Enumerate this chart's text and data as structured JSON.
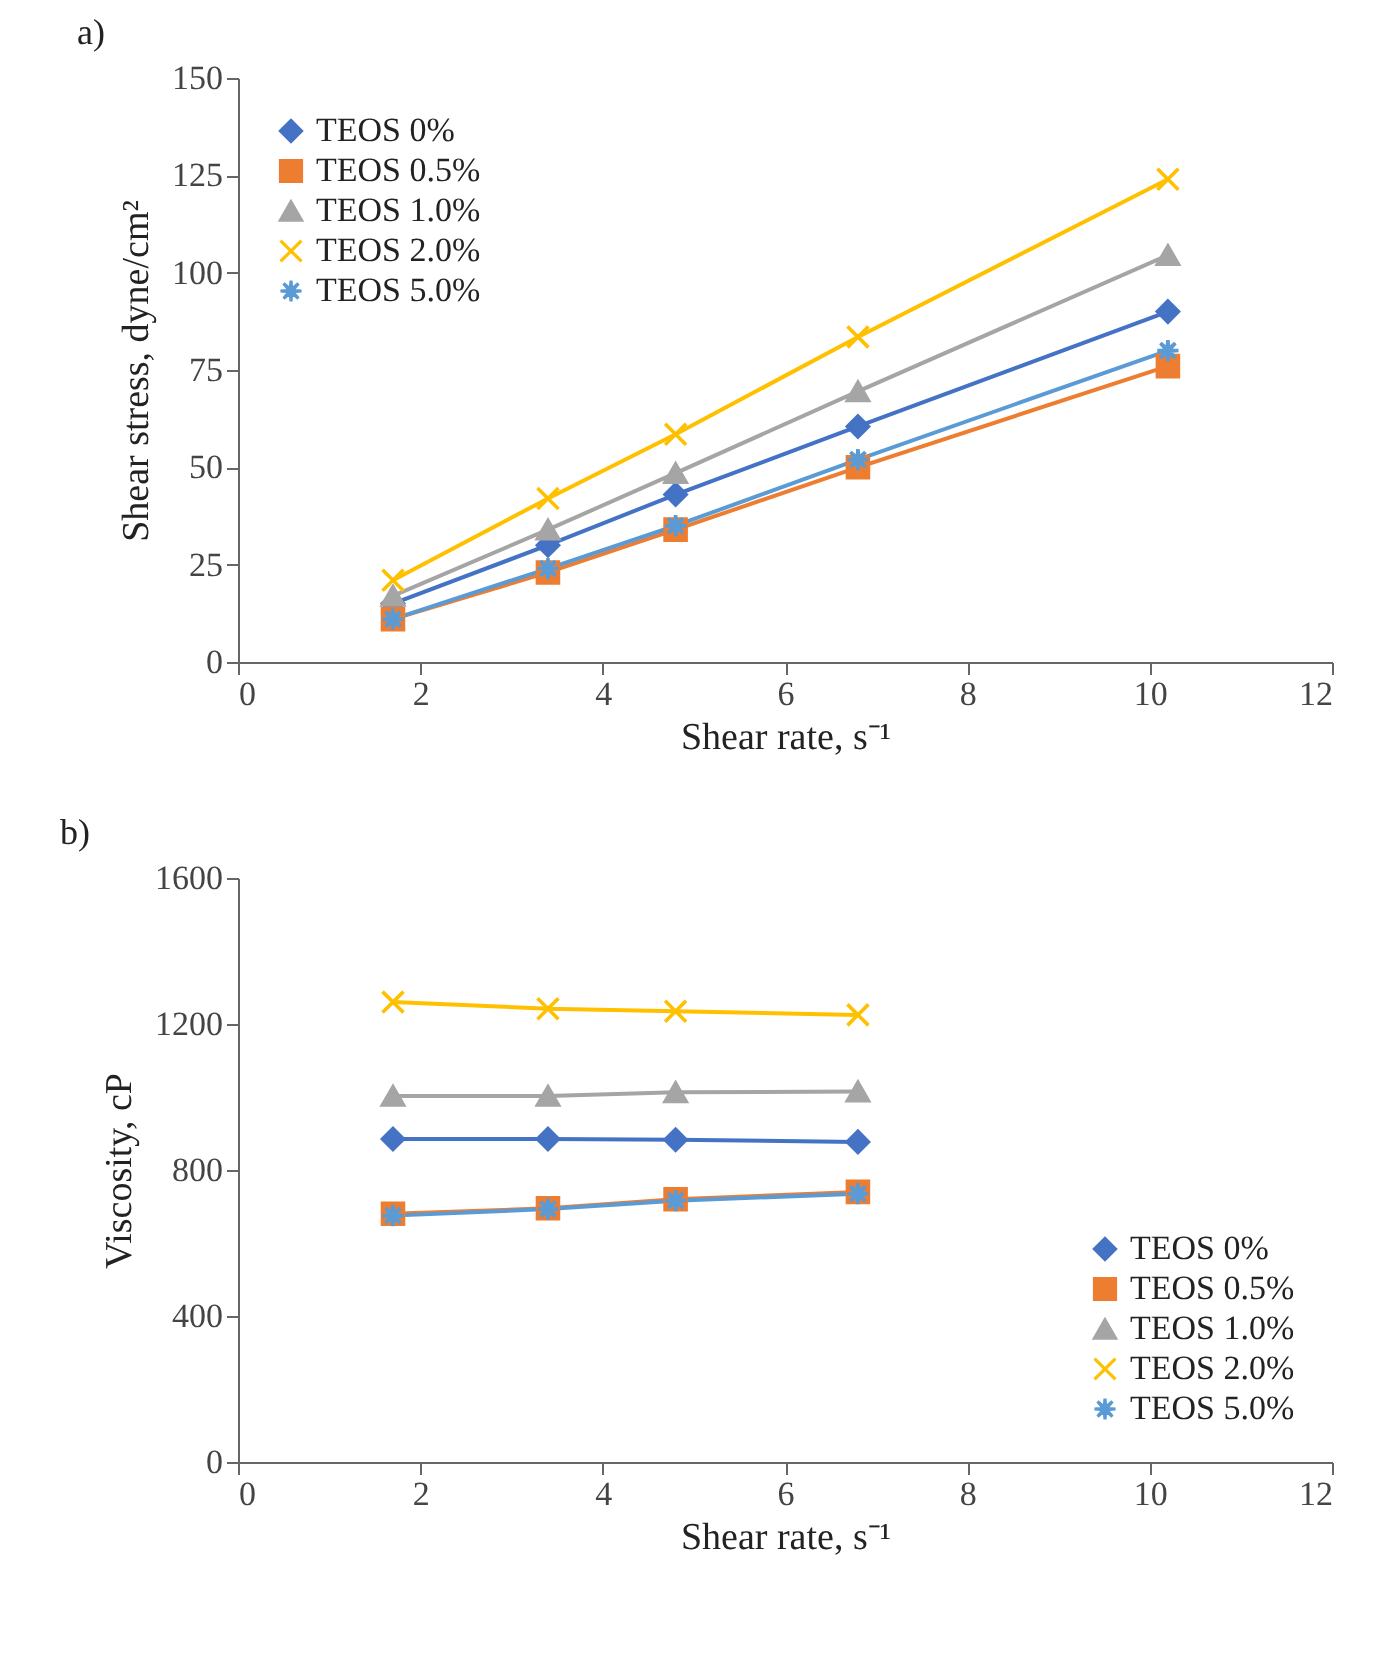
{
  "chart_data": [
    {
      "type": "line",
      "annotations": [
        "a)"
      ],
      "xlabel": "Shear rate, s⁻¹",
      "ylabel": "Shear stress, dyne/cm²",
      "x": [
        1.7,
        3.4,
        4.8,
        6.8,
        10.2
      ],
      "xlim": [
        0,
        12
      ],
      "xticks": [
        0,
        2,
        4,
        6,
        8,
        10,
        12
      ],
      "ylim": [
        0,
        150
      ],
      "yticks": [
        0,
        25,
        50,
        75,
        100,
        125,
        150
      ],
      "grid": false,
      "legend": "top left",
      "series": [
        {
          "name": "TEOS 0%",
          "color": "#4472c4",
          "marker": "diamond",
          "values": [
            15,
            30,
            43,
            60.5,
            90
          ]
        },
        {
          "name": "TEOS 0.5%",
          "color": "#ed7d31",
          "marker": "square",
          "values": [
            11,
            23,
            34,
            50,
            76
          ]
        },
        {
          "name": "TEOS 1.0%",
          "color": "#a5a5a5",
          "marker": "triangle",
          "values": [
            17,
            34,
            48.5,
            69.5,
            104.5
          ]
        },
        {
          "name": "TEOS 2.0%",
          "color": "#ffc000",
          "marker": "cross",
          "values": [
            21,
            42,
            58.5,
            83.5,
            124
          ]
        },
        {
          "name": "TEOS 5.0%",
          "color": "#5b9bd5",
          "marker": "star",
          "values": [
            11,
            24,
            35,
            52,
            80
          ]
        }
      ]
    },
    {
      "type": "line",
      "annotations": [
        "b)"
      ],
      "xlabel": "Shear rate, s⁻¹",
      "ylabel": "Viscosity, cP",
      "x": [
        1.7,
        3.4,
        4.8,
        6.8
      ],
      "xlim": [
        0,
        12
      ],
      "xticks": [
        0,
        2,
        4,
        6,
        8,
        10,
        12
      ],
      "ylim": [
        0,
        1600
      ],
      "yticks": [
        0,
        400,
        800,
        {
          "value": 1200,
          "label": "1200"
        },
        {
          "value": 1600,
          "label": "1600"
        }
      ],
      "grid": false,
      "legend": "bottom right",
      "series": [
        {
          "name": "TEOS 0%",
          "color": "#4472c4",
          "marker": "diamond",
          "values": [
            885,
            885,
            883,
            877
          ]
        },
        {
          "name": "TEOS 0.5%",
          "color": "#ed7d31",
          "marker": "square",
          "values": [
            680,
            695,
            720,
            740
          ]
        },
        {
          "name": "TEOS 1.0%",
          "color": "#a5a5a5",
          "marker": "triangle",
          "values": [
            1003,
            1003,
            1013,
            1015
          ]
        },
        {
          "name": "TEOS 2.0%",
          "color": "#ffc000",
          "marker": "cross",
          "values": [
            1260,
            1242,
            1235,
            1225
          ]
        },
        {
          "name": "TEOS 5.0%",
          "color": "#5b9bd5",
          "marker": "star",
          "values": [
            675,
            693,
            716,
            735
          ]
        }
      ]
    }
  ]
}
